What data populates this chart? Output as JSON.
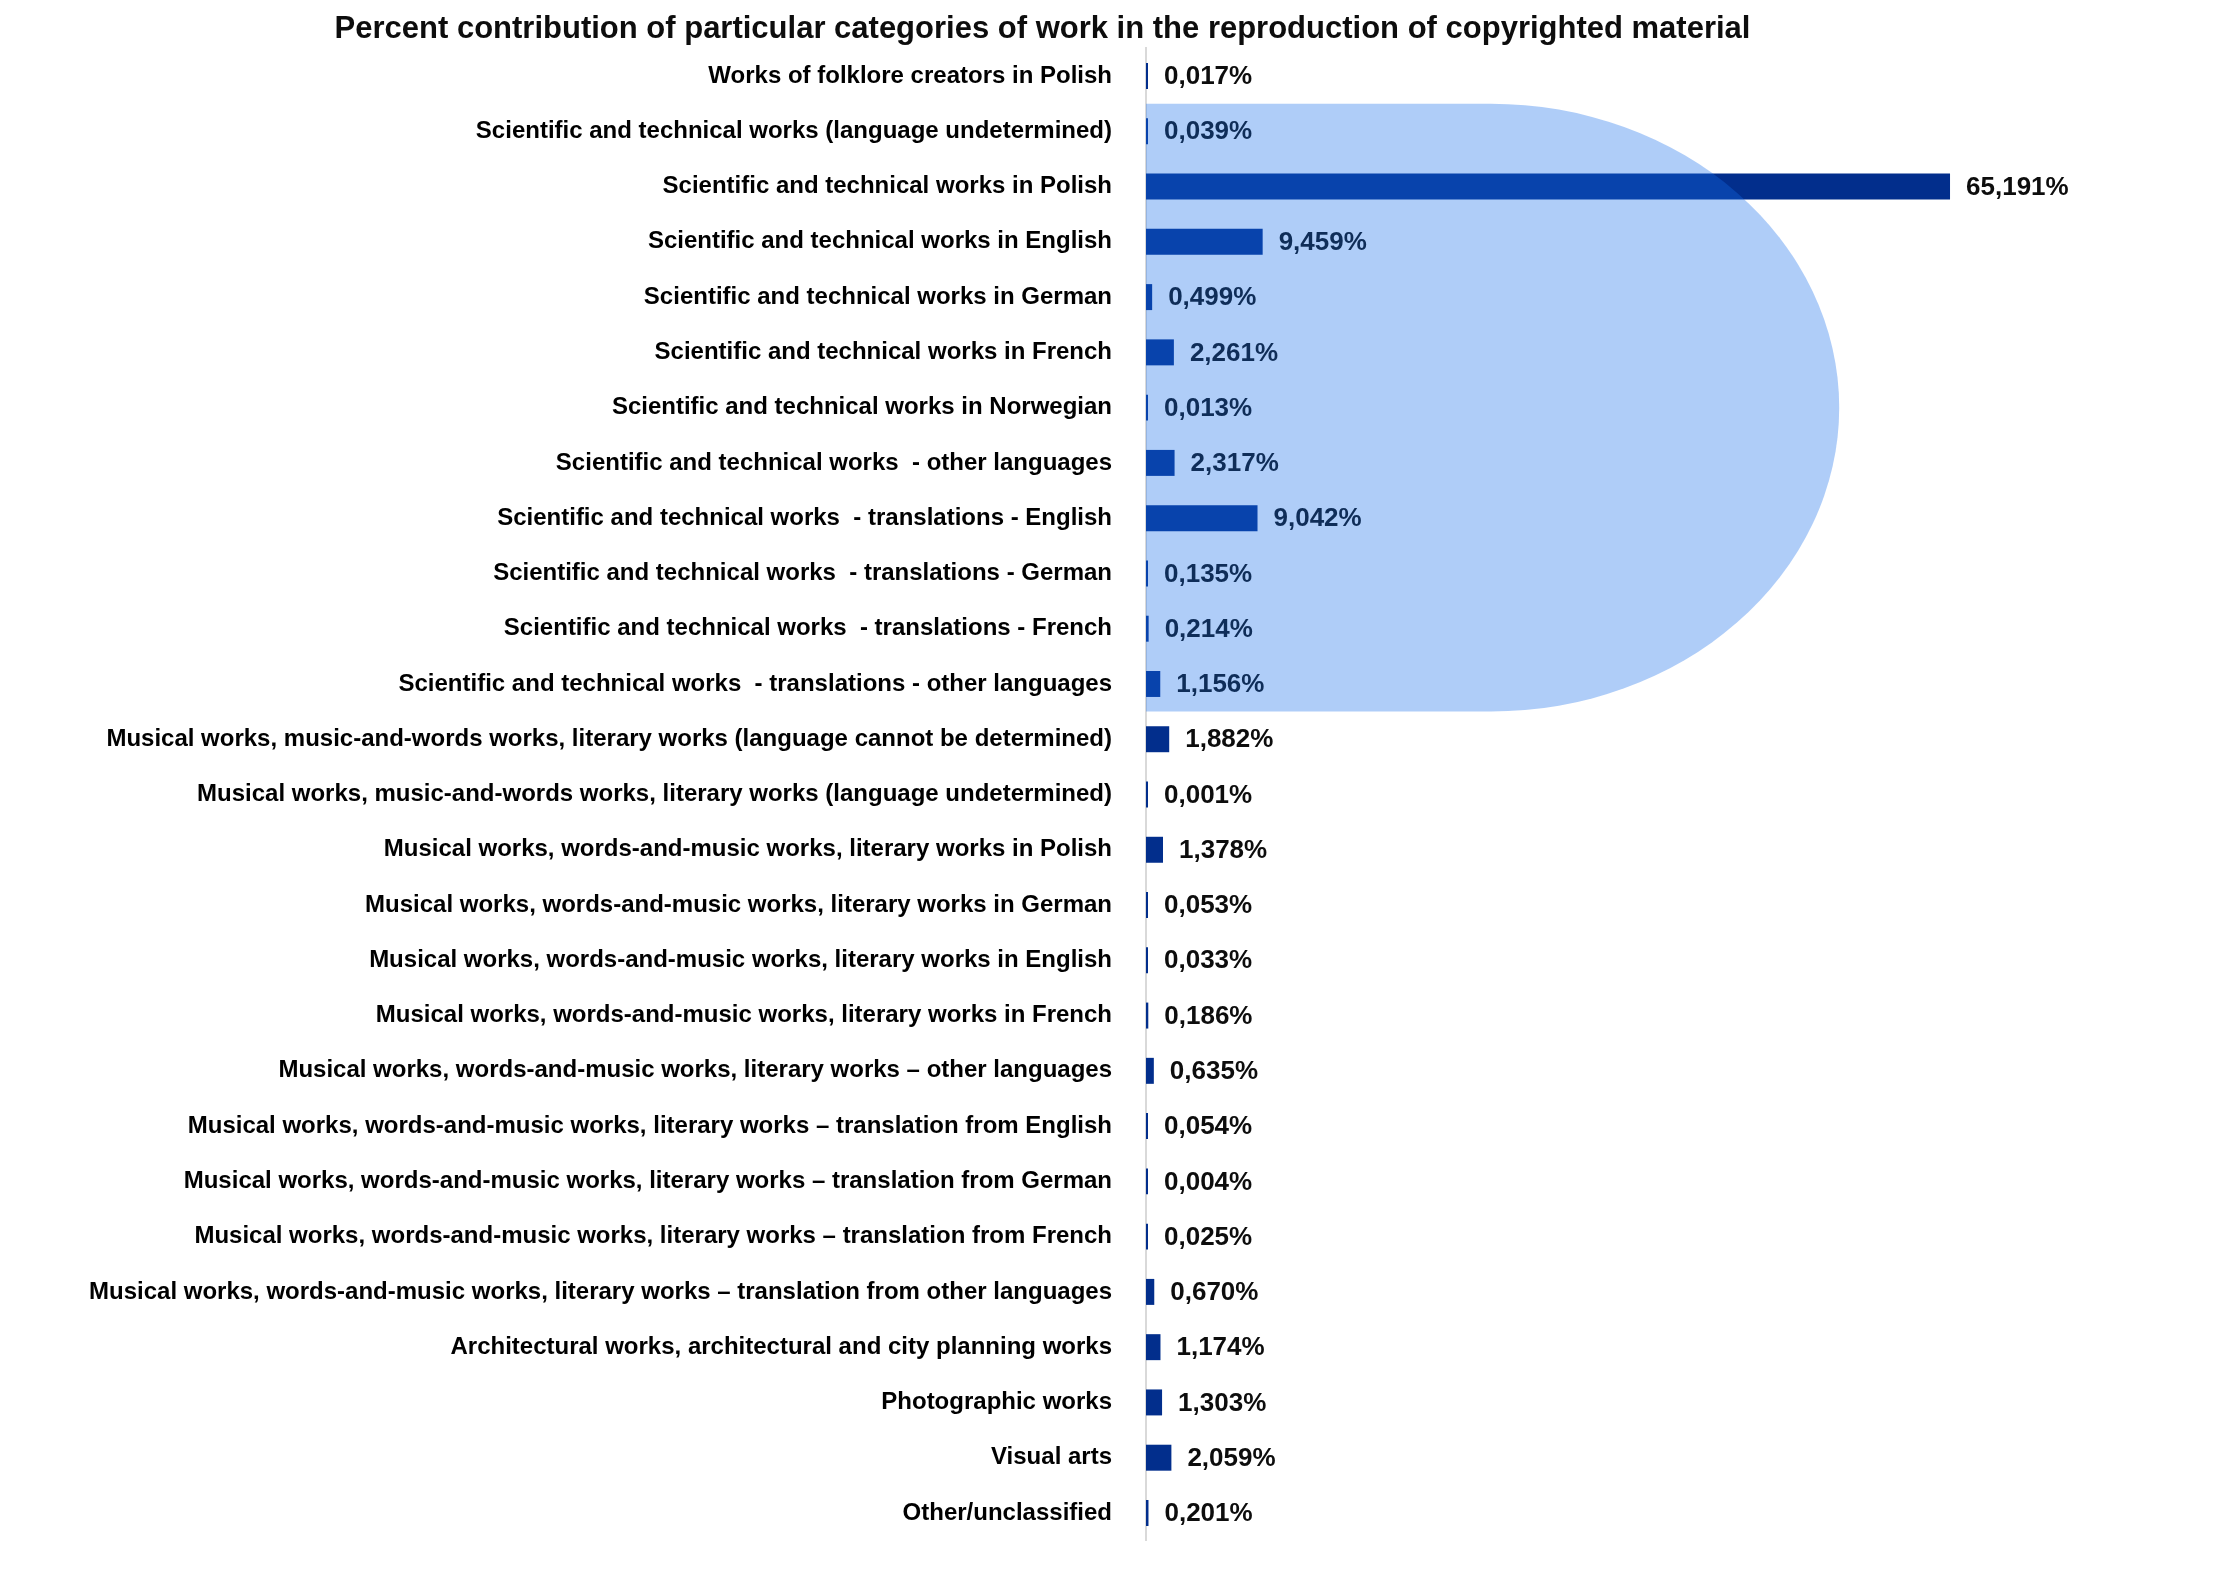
{
  "chart_data": {
    "type": "bar",
    "orientation": "horizontal",
    "title": "Percent contribution of particular categories of work in the reproduction of copyrighted material",
    "categories": [
      "Works of folklore creators in Polish",
      "Scientific and technical works (language undetermined)",
      "Scientific and technical works in Polish",
      "Scientific and technical works in English",
      "Scientific and technical works in German",
      "Scientific and technical works in French",
      "Scientific and technical works in Norwegian",
      "Scientific and technical works  - other languages",
      "Scientific and technical works  - translations - English",
      "Scientific and technical works  - translations - German",
      "Scientific and technical works  - translations - French",
      "Scientific and technical works  - translations - other languages",
      "Musical works, music-and-words works, literary works (language cannot be determined)",
      "Musical works, music-and-words works, literary works (language undetermined)",
      "Musical works, words-and-music works, literary works in Polish",
      "Musical works, words-and-music works, literary works in German",
      "Musical works, words-and-music works, literary works in English",
      "Musical works, words-and-music works, literary works in French",
      "Musical works, words-and-music works, literary works – other languages",
      "Musical works, words-and-music works, literary works – translation from English",
      "Musical works, words-and-music works, literary works – translation from German",
      "Musical works, words-and-music works, literary works – translation from French",
      "Musical works, words-and-music works, literary works – translation from other languages",
      "Architectural works, architectural and city planning works",
      "Photographic works",
      "Visual arts",
      "Other/unclassified"
    ],
    "values": [
      0.017,
      0.039,
      65.191,
      9.459,
      0.499,
      2.261,
      0.013,
      2.317,
      9.042,
      0.135,
      0.214,
      1.156,
      1.882,
      0.001,
      1.378,
      0.053,
      0.033,
      0.186,
      0.635,
      0.054,
      0.004,
      0.025,
      0.67,
      1.174,
      1.303,
      2.059,
      0.201
    ],
    "value_labels": [
      "0,017%",
      "0,039%",
      "65,191%",
      "9,459%",
      "0,499%",
      "2,261%",
      "0,013%",
      "2,317%",
      "9,042%",
      "0,135%",
      "0,214%",
      "1,156%",
      "1,882%",
      "0,001%",
      "1,378%",
      "0,053%",
      "0,033%",
      "0,186%",
      "0,635%",
      "0,054%",
      "0,004%",
      "0,025%",
      "0,670%",
      "1,174%",
      "1,303%",
      "2,059%",
      "0,201%"
    ],
    "color": "#022e8c",
    "bands": [
      {
        "axis": "y",
        "from": "Scientific and technical works (language undetermined)",
        "to": "Scientific and technical works  - translations - other languages",
        "color": "#afcdf8"
      }
    ],
    "tick_labels": "y"
  }
}
